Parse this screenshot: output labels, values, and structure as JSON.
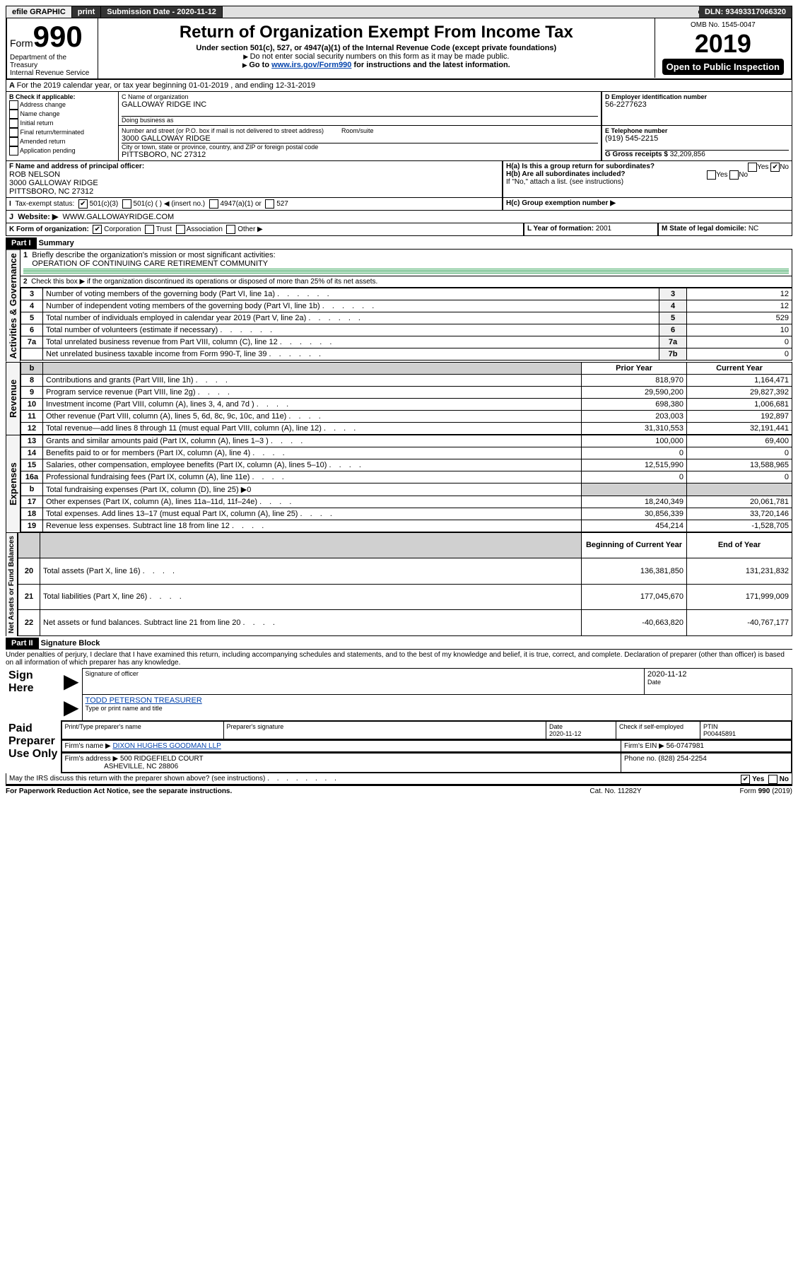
{
  "topbar": {
    "efile": "efile GRAPHIC",
    "print": "print",
    "submission_label": "Submission Date - 2020-11-12",
    "dln_label": "DLN: 93493317066320"
  },
  "header": {
    "form_label": "Form",
    "form_number": "990",
    "title": "Return of Organization Exempt From Income Tax",
    "subtitle": "Under section 501(c), 527, or 4947(a)(1) of the Internal Revenue Code (except private foundations)",
    "warn": "Do not enter social security numbers on this form as it may be made public.",
    "goto_prefix": "Go to ",
    "goto_link": "www.irs.gov/Form990",
    "goto_suffix": " for instructions and the latest information.",
    "dept1": "Department of the Treasury",
    "dept2": "Internal Revenue Service",
    "omb": "OMB No. 1545-0047",
    "year": "2019",
    "open_public": "Open to Public Inspection"
  },
  "periodA": "For the 2019 calendar year, or tax year beginning 01-01-2019   , and ending 12-31-2019",
  "boxB": {
    "heading": "B Check if applicable:",
    "opts": [
      "Address change",
      "Name change",
      "Initial return",
      "Final return/terminated",
      "Amended return",
      "Application pending"
    ]
  },
  "boxC": {
    "label": "C Name of organization",
    "name": "GALLOWAY RIDGE INC",
    "dba_label": "Doing business as",
    "addr_label": "Number and street (or P.O. box if mail is not delivered to street address)",
    "room_label": "Room/suite",
    "addr": "3000 GALLOWAY RIDGE",
    "city_label": "City or town, state or province, country, and ZIP or foreign postal code",
    "city": "PITTSBORO, NC  27312"
  },
  "boxD": {
    "label": "D Employer identification number",
    "val": "56-2277623"
  },
  "boxE": {
    "label": "E Telephone number",
    "val": "(919) 545-2215"
  },
  "boxF": {
    "label": "F Name and address of principal officer:",
    "name": "ROB NELSON",
    "addr1": "3000 GALLOWAY RIDGE",
    "addr2": "PITTSBORO, NC  27312"
  },
  "boxG": {
    "label": "G Gross receipts $",
    "val": "32,209,856"
  },
  "boxH": {
    "a_label": "H(a)  Is this a group return for subordinates?",
    "b_label": "H(b)  Are all subordinates included?",
    "attach": "If \"No,\" attach a list. (see instructions)",
    "c_label": "H(c)  Group exemption number ▶",
    "yes": "Yes",
    "no": "No"
  },
  "boxI": {
    "label": "Tax-exempt status:",
    "o1": "501(c)(3)",
    "o2": "501(c) (  ) ◀ (insert no.)",
    "o3": "4947(a)(1) or",
    "o4": "527"
  },
  "boxJ": {
    "label": "Website: ▶",
    "val": "WWW.GALLOWAYRIDGE.COM"
  },
  "boxK": {
    "label": "K Form of organization:",
    "o1": "Corporation",
    "o2": "Trust",
    "o3": "Association",
    "o4": "Other ▶"
  },
  "boxL": {
    "label": "L Year of formation:",
    "val": "2001"
  },
  "boxM": {
    "label": "M State of legal domicile:",
    "val": "NC"
  },
  "part1": {
    "bar": "Part I",
    "title": "Summary",
    "line1_label": "Briefly describe the organization's mission or most significant activities:",
    "line1_val": "OPERATION OF CONTINUING CARE RETIREMENT COMMUNITY",
    "line2": "Check this box ▶     if the organization discontinued its operations or disposed of more than 25% of its net assets.",
    "vlabel_gov": "Activities & Governance",
    "vlabel_rev": "Revenue",
    "vlabel_exp": "Expenses",
    "vlabel_net": "Net Assets or Fund Balances",
    "prior": "Prior Year",
    "current": "Current Year",
    "begin": "Beginning of Current Year",
    "end": "End of Year",
    "rows_gov": [
      {
        "n": "3",
        "t": "Number of voting members of the governing body (Part VI, line 1a)",
        "k": "3",
        "v": "12"
      },
      {
        "n": "4",
        "t": "Number of independent voting members of the governing body (Part VI, line 1b)",
        "k": "4",
        "v": "12"
      },
      {
        "n": "5",
        "t": "Total number of individuals employed in calendar year 2019 (Part V, line 2a)",
        "k": "5",
        "v": "529"
      },
      {
        "n": "6",
        "t": "Total number of volunteers (estimate if necessary)",
        "k": "6",
        "v": "10"
      },
      {
        "n": "7a",
        "t": "Total unrelated business revenue from Part VIII, column (C), line 12",
        "k": "7a",
        "v": "0"
      },
      {
        "n": "",
        "t": "Net unrelated business taxable income from Form 990-T, line 39",
        "k": "7b",
        "v": "0"
      }
    ],
    "rows_rev": [
      {
        "n": "8",
        "t": "Contributions and grants (Part VIII, line 1h)",
        "p": "818,970",
        "c": "1,164,471"
      },
      {
        "n": "9",
        "t": "Program service revenue (Part VIII, line 2g)",
        "p": "29,590,200",
        "c": "29,827,392"
      },
      {
        "n": "10",
        "t": "Investment income (Part VIII, column (A), lines 3, 4, and 7d )",
        "p": "698,380",
        "c": "1,006,681"
      },
      {
        "n": "11",
        "t": "Other revenue (Part VIII, column (A), lines 5, 6d, 8c, 9c, 10c, and 11e)",
        "p": "203,003",
        "c": "192,897"
      },
      {
        "n": "12",
        "t": "Total revenue—add lines 8 through 11 (must equal Part VIII, column (A), line 12)",
        "p": "31,310,553",
        "c": "32,191,441"
      }
    ],
    "rows_exp": [
      {
        "n": "13",
        "t": "Grants and similar amounts paid (Part IX, column (A), lines 1–3 )",
        "p": "100,000",
        "c": "69,400"
      },
      {
        "n": "14",
        "t": "Benefits paid to or for members (Part IX, column (A), line 4)",
        "p": "0",
        "c": "0"
      },
      {
        "n": "15",
        "t": "Salaries, other compensation, employee benefits (Part IX, column (A), lines 5–10)",
        "p": "12,515,990",
        "c": "13,588,965"
      },
      {
        "n": "16a",
        "t": "Professional fundraising fees (Part IX, column (A), line 11e)",
        "p": "0",
        "c": "0"
      },
      {
        "n": "b",
        "t": "Total fundraising expenses (Part IX, column (D), line 25) ▶0",
        "p": "",
        "c": "",
        "gray": true
      },
      {
        "n": "17",
        "t": "Other expenses (Part IX, column (A), lines 11a–11d, 11f–24e)",
        "p": "18,240,349",
        "c": "20,061,781"
      },
      {
        "n": "18",
        "t": "Total expenses. Add lines 13–17 (must equal Part IX, column (A), line 25)",
        "p": "30,856,339",
        "c": "33,720,146"
      },
      {
        "n": "19",
        "t": "Revenue less expenses. Subtract line 18 from line 12",
        "p": "454,214",
        "c": "-1,528,705"
      }
    ],
    "rows_net": [
      {
        "n": "20",
        "t": "Total assets (Part X, line 16)",
        "p": "136,381,850",
        "c": "131,231,832"
      },
      {
        "n": "21",
        "t": "Total liabilities (Part X, line 26)",
        "p": "177,045,670",
        "c": "171,999,009"
      },
      {
        "n": "22",
        "t": "Net assets or fund balances. Subtract line 21 from line 20",
        "p": "-40,663,820",
        "c": "-40,767,177"
      }
    ]
  },
  "part2": {
    "bar": "Part II",
    "title": "Signature Block",
    "perjury": "Under penalties of perjury, I declare that I have examined this return, including accompanying schedules and statements, and to the best of my knowledge and belief, it is true, correct, and complete. Declaration of preparer (other than officer) is based on all information of which preparer has any knowledge.",
    "sign_here": "Sign Here",
    "sig_officer": "Signature of officer",
    "date": "Date",
    "sig_date": "2020-11-12",
    "typed": "TODD PETERSON  TREASURER",
    "typed_label": "Type or print name and title",
    "paid": "Paid Preparer Use Only",
    "pp_name_label": "Print/Type preparer's name",
    "pp_sig_label": "Preparer's signature",
    "pp_date_label": "Date",
    "pp_date": "2020-11-12",
    "pp_check_label": "Check      if self-employed",
    "ptin_label": "PTIN",
    "ptin": "P00445891",
    "firm_name_label": "Firm's name   ▶",
    "firm_name": "DIXON HUGHES GOODMAN LLP",
    "firm_ein_label": "Firm's EIN ▶",
    "firm_ein": "56-0747981",
    "firm_addr_label": "Firm's address ▶",
    "firm_addr1": "500 RIDGEFIELD COURT",
    "firm_addr2": "ASHEVILLE, NC  28806",
    "phone_label": "Phone no.",
    "phone": "(828) 254-2254",
    "discuss": "May the IRS discuss this return with the preparer shown above? (see instructions)",
    "paperwork": "For Paperwork Reduction Act Notice, see the separate instructions.",
    "cat": "Cat. No. 11282Y",
    "formfoot": "Form 990 (2019)"
  }
}
